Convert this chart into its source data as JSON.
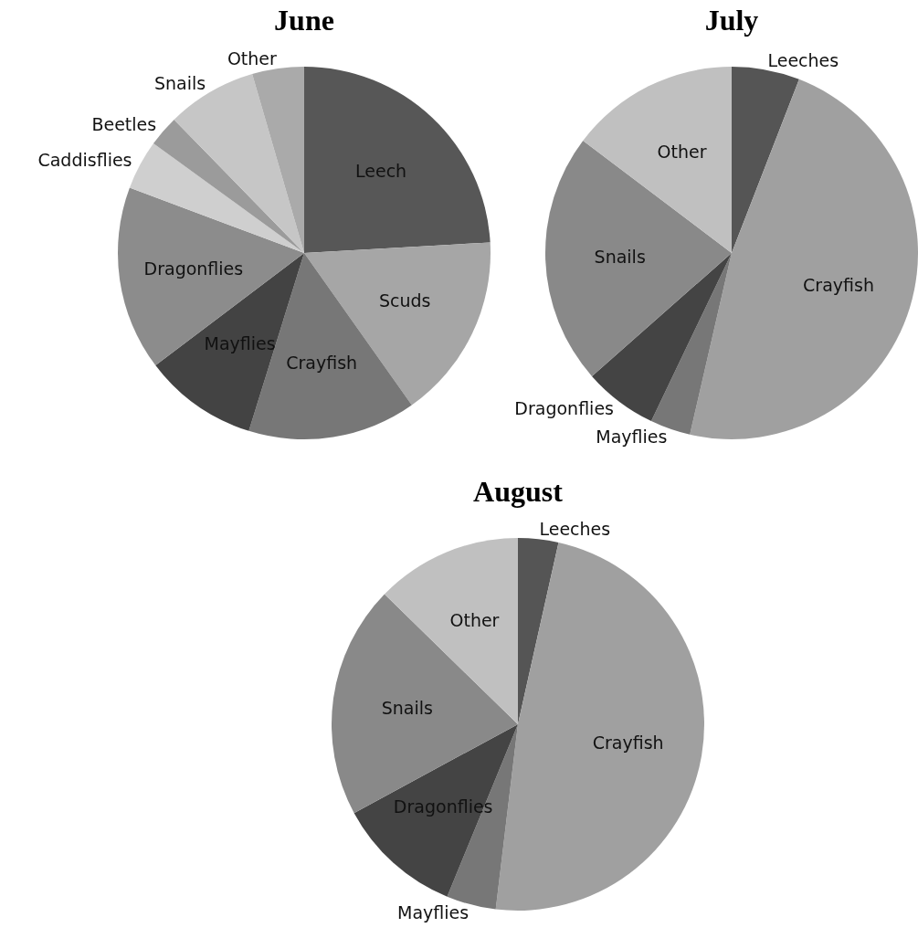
{
  "chart_data": [
    {
      "type": "pie",
      "title": "June",
      "categories": [
        "Leech",
        "Scuds",
        "Crayfish",
        "Mayflies",
        "Dragonflies",
        "Caddisflies",
        "Beetles",
        "Snails",
        "Other"
      ],
      "values": [
        24.1,
        16.1,
        14.6,
        9.9,
        16.0,
        4.3,
        2.7,
        7.8,
        4.5
      ],
      "colors": [
        "#575757",
        "#a6a6a6",
        "#777777",
        "#434343",
        "#8c8c8c",
        "#cfcfcf",
        "#9b9b9b",
        "#c6c6c6",
        "#aaaaaa"
      ]
    },
    {
      "type": "pie",
      "title": "July",
      "categories": [
        "Leeches",
        "Crayfish",
        "Mayflies",
        "Dragonflies",
        "Snails",
        "Other"
      ],
      "values": [
        5.9,
        47.7,
        3.5,
        6.4,
        21.8,
        14.7
      ],
      "colors": [
        "#555555",
        "#a0a0a0",
        "#777777",
        "#444444",
        "#898989",
        "#c0c0c0"
      ]
    },
    {
      "type": "pie",
      "title": "August",
      "categories": [
        "Leeches",
        "Crayfish",
        "Mayflies",
        "Dragonflies",
        "Snails",
        "Other"
      ],
      "values": [
        3.5,
        48.4,
        4.3,
        10.9,
        20.2,
        12.7
      ],
      "colors": [
        "#555555",
        "#a0a0a0",
        "#777777",
        "#444444",
        "#898989",
        "#c0c0c0"
      ]
    }
  ]
}
